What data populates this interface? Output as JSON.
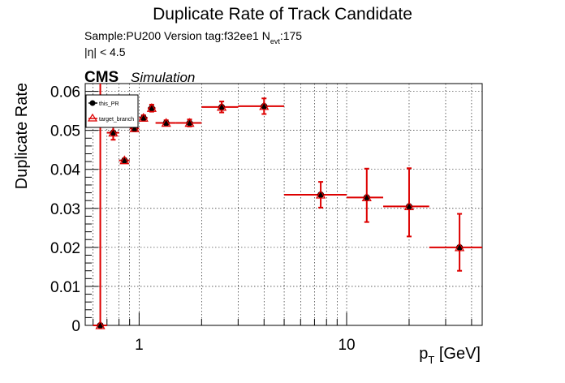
{
  "chart_data": {
    "type": "scatter",
    "title": "Duplicate Rate of Track Candidate",
    "subtitle_line1": "Sample:PU200   Version tag:f32ee1  N",
    "subtitle_sub": "evt",
    "subtitle_tail": ":175",
    "subtitle_line2": "|η| < 4.5",
    "cms_label": "CMS",
    "cms_sub": "Simulation",
    "xlabel_main": "p",
    "xlabel_sub": "T",
    "xlabel_unit": " [GeV]",
    "ylabel": "Duplicate Rate",
    "x_scale": "log",
    "xlim": [
      0.55,
      45
    ],
    "ylim": [
      0,
      0.062
    ],
    "grid": true,
    "legend_position": "top-left",
    "xticks": [
      {
        "v": 1,
        "label": "1"
      },
      {
        "v": 10,
        "label": "10"
      }
    ],
    "yticks": [
      {
        "v": 0,
        "label": "0"
      },
      {
        "v": 0.01,
        "label": "0.01"
      },
      {
        "v": 0.02,
        "label": "0.02"
      },
      {
        "v": 0.03,
        "label": "0.03"
      },
      {
        "v": 0.04,
        "label": "0.04"
      },
      {
        "v": 0.05,
        "label": "0.05"
      },
      {
        "v": 0.06,
        "label": "0.06"
      }
    ],
    "series": [
      {
        "name": "this_PR",
        "color": "#000000",
        "marker": "circle",
        "points": [
          {
            "x": 0.65,
            "xlo": 0.6,
            "xhi": 0.7,
            "y": 0.0,
            "ylo": 0.0,
            "yhi": 0.062
          },
          {
            "x": 0.75,
            "xlo": 0.7,
            "xhi": 0.8,
            "y": 0.0494,
            "ylo": 0.0476,
            "yhi": 0.0512
          },
          {
            "x": 0.85,
            "xlo": 0.8,
            "xhi": 0.9,
            "y": 0.0423,
            "ylo": 0.0418,
            "yhi": 0.0428
          },
          {
            "x": 0.95,
            "xlo": 0.9,
            "xhi": 1.0,
            "y": 0.0505,
            "ylo": 0.0498,
            "yhi": 0.0512
          },
          {
            "x": 1.05,
            "xlo": 1.0,
            "xhi": 1.1,
            "y": 0.0532,
            "ylo": 0.0525,
            "yhi": 0.0539
          },
          {
            "x": 1.15,
            "xlo": 1.1,
            "xhi": 1.2,
            "y": 0.0557,
            "ylo": 0.0548,
            "yhi": 0.0566
          },
          {
            "x": 1.35,
            "xlo": 1.2,
            "xhi": 1.5,
            "y": 0.0519,
            "ylo": 0.0512,
            "yhi": 0.0526
          },
          {
            "x": 1.75,
            "xlo": 1.5,
            "xhi": 2.0,
            "y": 0.0519,
            "ylo": 0.051,
            "yhi": 0.0528
          },
          {
            "x": 2.5,
            "xlo": 2.0,
            "xhi": 3.0,
            "y": 0.056,
            "ylo": 0.0546,
            "yhi": 0.0574
          },
          {
            "x": 4.0,
            "xlo": 3.0,
            "xhi": 5.0,
            "y": 0.0562,
            "ylo": 0.0542,
            "yhi": 0.0582
          },
          {
            "x": 7.5,
            "xlo": 5.0,
            "xhi": 10.0,
            "y": 0.0335,
            "ylo": 0.0302,
            "yhi": 0.0368
          },
          {
            "x": 12.5,
            "xlo": 10.0,
            "xhi": 15.0,
            "y": 0.0328,
            "ylo": 0.0265,
            "yhi": 0.0402
          },
          {
            "x": 20.0,
            "xlo": 15.0,
            "xhi": 25.0,
            "y": 0.0305,
            "ylo": 0.0228,
            "yhi": 0.0403
          },
          {
            "x": 35.0,
            "xlo": 25.0,
            "xhi": 45.0,
            "y": 0.02,
            "ylo": 0.014,
            "yhi": 0.0286
          }
        ]
      },
      {
        "name": "target_branch",
        "color": "#dd0000",
        "marker": "triangle",
        "points": "same"
      }
    ]
  }
}
